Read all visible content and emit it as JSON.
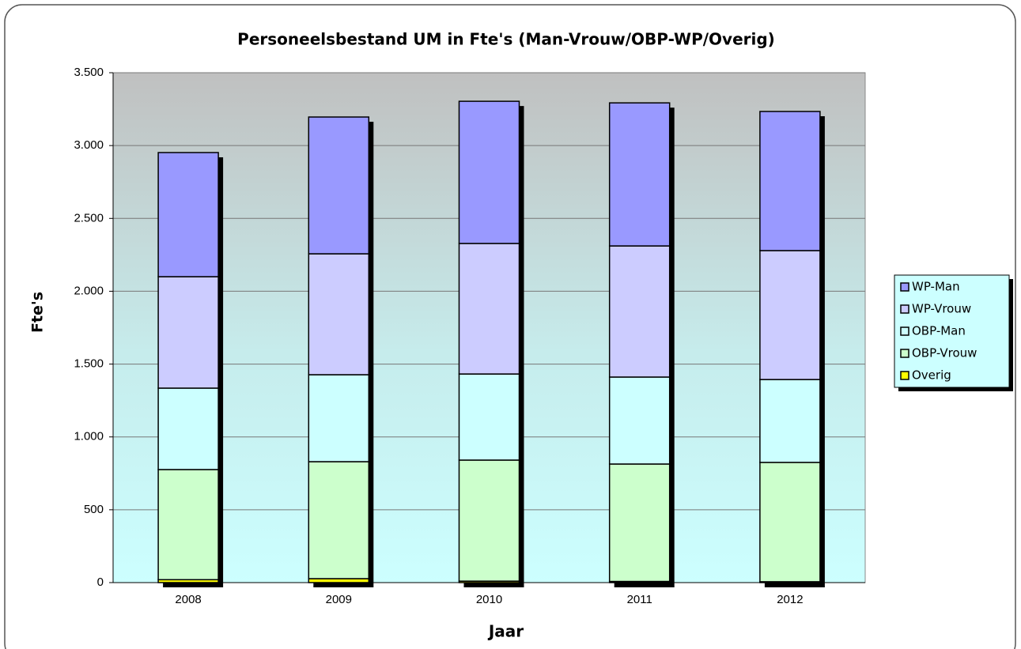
{
  "chart_data": {
    "type": "stacked_bar",
    "title": "Personeelsbestand UM in Fte's (Man-Vrouw/OBP-WP/Overig)",
    "x_label": "Jaar",
    "y_label": "Fte's",
    "categories": [
      "2008",
      "2009",
      "2010",
      "2011",
      "2012"
    ],
    "series": [
      {
        "name": "WP-Man",
        "color": "#9999ff",
        "values": [
          852,
          939,
          976,
          982,
          955
        ]
      },
      {
        "name": "WP-Vrouw",
        "color": "#ccccff",
        "values": [
          765,
          830,
          896,
          900,
          885
        ]
      },
      {
        "name": "OBP-Man",
        "color": "#ccffff",
        "values": [
          559,
          597,
          591,
          597,
          569
        ]
      },
      {
        "name": "OBP-Vrouw",
        "color": "#ccffcc",
        "values": [
          756,
          803,
          831,
          806,
          819
        ]
      },
      {
        "name": "Overig",
        "color": "#ffff00",
        "values": [
          20,
          27,
          10,
          8,
          6
        ]
      }
    ],
    "ylim": [
      0,
      3500
    ],
    "yticks": [
      0,
      500,
      {
        "value": 1000,
        "label": "1.000"
      },
      {
        "value": 1500,
        "label": "1.500"
      },
      {
        "value": 2000,
        "label": "2.000"
      },
      {
        "value": 2500,
        "label": "2.500"
      },
      {
        "value": 3000,
        "label": "3.000"
      },
      {
        "value": 3500,
        "label": "3.500"
      }
    ],
    "grid": true,
    "legend": "right"
  }
}
